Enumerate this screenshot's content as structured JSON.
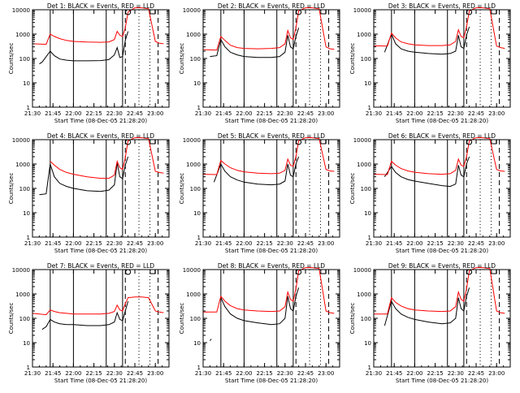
{
  "panel_common": {
    "ylabel": "Counts/sec",
    "xlabel": "Start Time (08-Dec-05 21:28:20)",
    "ytick_labels": [
      "1",
      "10",
      "100",
      "1000",
      "10000"
    ],
    "xtick_labels": [
      "21:30",
      "21:45",
      "22:00",
      "22:15",
      "22:30",
      "22:45",
      "23:00"
    ]
  },
  "colors": {
    "events": "#000000",
    "lld": "#ff0000",
    "axes": "#000000"
  },
  "chart_data": [
    {
      "type": "line",
      "title": "Det 1: BLACK = Events, RED = LLD",
      "xlabel": "Start Time (08-Dec-05 21:28:20)",
      "ylabel": "Counts/sec",
      "y_scale": "log",
      "ylim": [
        1,
        10000
      ],
      "xlim": [
        "21:30",
        "23:10"
      ],
      "series": [
        {
          "color": "black",
          "x": [
            "21:35",
            "21:37",
            "21:43",
            "21:46",
            "21:50",
            "21:55",
            "22:00",
            "22:10",
            "22:20",
            "22:26",
            "22:30",
            "22:32",
            "22:34",
            "22:36",
            "22:38",
            "22:40"
          ],
          "y": [
            60,
            70,
            200,
            130,
            95,
            85,
            80,
            80,
            82,
            90,
            140,
            280,
            110,
            120,
            550,
            1300
          ]
        },
        {
          "color": "red",
          "x": [
            "21:30",
            "21:40",
            "21:43",
            "21:46",
            "21:50",
            "21:55",
            "22:00",
            "22:10",
            "22:20",
            "22:26",
            "22:30",
            "22:32",
            "22:34",
            "22:36",
            "22:38",
            "22:40",
            "22:45",
            "22:50",
            "22:55",
            "23:00",
            "23:03",
            "23:06"
          ],
          "y": [
            400,
            380,
            1000,
            800,
            650,
            550,
            500,
            470,
            460,
            480,
            600,
            1300,
            900,
            800,
            1800,
            8000,
            12000,
            12000,
            11000,
            500,
            420,
            400
          ]
        }
      ]
    },
    {
      "type": "line",
      "title": "Det 2: BLACK = Events, RED = LLD",
      "xlabel": "Start Time (08-Dec-05 21:28:20)",
      "ylabel": "Counts/sec",
      "y_scale": "log",
      "ylim": [
        1,
        10000
      ],
      "xlim": [
        "21:30",
        "23:10"
      ],
      "series": [
        {
          "color": "black",
          "x": [
            "21:35",
            "21:40",
            "21:43",
            "21:46",
            "21:50",
            "21:55",
            "22:00",
            "22:10",
            "22:20",
            "22:26",
            "22:30",
            "22:32",
            "22:34",
            "22:36",
            "22:38",
            "22:40"
          ],
          "y": [
            120,
            130,
            600,
            300,
            180,
            140,
            120,
            110,
            110,
            120,
            180,
            900,
            300,
            250,
            800,
            1800
          ]
        },
        {
          "color": "red",
          "x": [
            "21:30",
            "21:40",
            "21:43",
            "21:46",
            "21:50",
            "21:55",
            "22:00",
            "22:10",
            "22:20",
            "22:26",
            "22:30",
            "22:32",
            "22:34",
            "22:36",
            "22:38",
            "22:40",
            "22:45",
            "22:50",
            "22:55",
            "23:00",
            "23:03",
            "23:06"
          ],
          "y": [
            230,
            220,
            800,
            550,
            350,
            280,
            260,
            250,
            260,
            280,
            400,
            1400,
            700,
            600,
            1800,
            9000,
            12000,
            12000,
            11000,
            300,
            250,
            240
          ]
        }
      ]
    },
    {
      "type": "line",
      "title": "Det 3: BLACK = Events, RED = LLD",
      "xlabel": "Start Time (08-Dec-05 21:28:20)",
      "ylabel": "Counts/sec",
      "y_scale": "log",
      "ylim": [
        1,
        10000
      ],
      "xlim": [
        "21:30",
        "23:10"
      ],
      "series": [
        {
          "color": "black",
          "x": [
            "21:38",
            "21:43",
            "21:46",
            "21:50",
            "21:55",
            "22:00",
            "22:10",
            "22:20",
            "22:26",
            "22:30",
            "22:32",
            "22:34",
            "22:36",
            "22:38",
            "22:40"
          ],
          "y": [
            180,
            1000,
            400,
            250,
            200,
            180,
            160,
            150,
            160,
            200,
            900,
            300,
            260,
            900,
            2000
          ]
        },
        {
          "color": "red",
          "x": [
            "21:30",
            "21:40",
            "21:43",
            "21:46",
            "21:50",
            "21:55",
            "22:00",
            "22:10",
            "22:20",
            "22:26",
            "22:30",
            "22:32",
            "22:34",
            "22:36",
            "22:38",
            "22:40",
            "22:45",
            "22:50",
            "22:55",
            "23:00",
            "23:03",
            "23:06"
          ],
          "y": [
            330,
            320,
            1100,
            700,
            480,
            400,
            360,
            340,
            340,
            360,
            500,
            1500,
            800,
            700,
            2000,
            9000,
            12000,
            12000,
            11000,
            320,
            280,
            260
          ]
        }
      ]
    },
    {
      "type": "line",
      "title": "Det 4: BLACK = Events, RED = LLD",
      "xlabel": "Start Time (08-Dec-05 21:28:20)",
      "ylabel": "Counts/sec",
      "y_scale": "log",
      "ylim": [
        1,
        10000
      ],
      "xlim": [
        "21:30",
        "23:10"
      ],
      "series": [
        {
          "color": "black",
          "x": [
            "21:35",
            "21:40",
            "21:43",
            "21:46",
            "21:50",
            "21:55",
            "22:00",
            "22:10",
            "22:20",
            "22:26",
            "22:30",
            "22:32",
            "22:34",
            "22:36",
            "22:38",
            "22:40"
          ],
          "y": [
            55,
            60,
            1000,
            300,
            160,
            120,
            100,
            80,
            75,
            85,
            140,
            1100,
            300,
            250,
            900,
            2000
          ]
        },
        {
          "color": "red",
          "x": [
            "21:43",
            "21:46",
            "21:50",
            "21:55",
            "22:00",
            "22:10",
            "22:20",
            "22:26",
            "22:30",
            "22:32",
            "22:34",
            "22:36",
            "22:38",
            "22:40",
            "22:45",
            "22:50",
            "22:55",
            "23:00",
            "23:03",
            "23:06"
          ],
          "y": [
            1300,
            900,
            600,
            450,
            380,
            300,
            260,
            260,
            350,
            1300,
            700,
            600,
            1800,
            9000,
            12000,
            12000,
            11000,
            500,
            450,
            420
          ]
        }
      ]
    },
    {
      "type": "line",
      "title": "Det 5: BLACK = Events, RED = LLD",
      "xlabel": "Start Time (08-Dec-05 21:28:20)",
      "ylabel": "Counts/sec",
      "y_scale": "log",
      "ylim": [
        1,
        10000
      ],
      "xlim": [
        "21:30",
        "23:10"
      ],
      "series": [
        {
          "color": "black",
          "x": [
            "21:38",
            "21:43",
            "21:46",
            "21:50",
            "21:55",
            "22:00",
            "22:10",
            "22:20",
            "22:26",
            "22:30",
            "22:32",
            "22:34",
            "22:36",
            "22:38",
            "22:40"
          ],
          "y": [
            180,
            1000,
            500,
            300,
            220,
            180,
            150,
            140,
            150,
            200,
            1000,
            350,
            300,
            1000,
            2000
          ]
        },
        {
          "color": "red",
          "x": [
            "21:30",
            "21:40",
            "21:43",
            "21:46",
            "21:50",
            "21:55",
            "22:00",
            "22:10",
            "22:20",
            "22:26",
            "22:30",
            "22:32",
            "22:34",
            "22:36",
            "22:38",
            "22:40",
            "22:45",
            "22:50",
            "22:55",
            "23:00",
            "23:03",
            "23:06"
          ],
          "y": [
            380,
            370,
            1400,
            1000,
            700,
            550,
            480,
            420,
            400,
            420,
            550,
            1600,
            900,
            800,
            2000,
            9000,
            12000,
            12000,
            11000,
            600,
            520,
            500
          ]
        }
      ]
    },
    {
      "type": "line",
      "title": "Det 6: BLACK = Events, RED = LLD",
      "xlabel": "Start Time (08-Dec-05 21:28:20)",
      "ylabel": "Counts/sec",
      "y_scale": "log",
      "ylim": [
        1,
        10000
      ],
      "xlim": [
        "21:30",
        "23:10"
      ],
      "series": [
        {
          "color": "black",
          "x": [
            "21:38",
            "21:43",
            "21:46",
            "21:50",
            "21:55",
            "22:00",
            "22:10",
            "22:20",
            "22:26",
            "22:30",
            "22:32",
            "22:34",
            "22:36",
            "22:38",
            "22:40"
          ],
          "y": [
            300,
            800,
            450,
            300,
            230,
            200,
            160,
            130,
            120,
            150,
            900,
            350,
            300,
            1000,
            2000
          ]
        },
        {
          "color": "red",
          "x": [
            "21:30",
            "21:40",
            "21:43",
            "21:46",
            "21:50",
            "21:55",
            "22:00",
            "22:10",
            "22:20",
            "22:26",
            "22:30",
            "22:32",
            "22:34",
            "22:36",
            "22:38",
            "22:40",
            "22:45",
            "22:50",
            "22:55",
            "23:00",
            "23:03",
            "23:06"
          ],
          "y": [
            380,
            370,
            1300,
            900,
            650,
            520,
            460,
            400,
            380,
            400,
            550,
            1600,
            900,
            800,
            2000,
            9000,
            12000,
            12000,
            11000,
            600,
            520,
            500
          ]
        }
      ]
    },
    {
      "type": "line",
      "title": "Det 7: BLACK = Events, RED = LLD",
      "xlabel": "Start Time (08-Dec-05 21:28:20)",
      "ylabel": "Counts/sec",
      "y_scale": "log",
      "ylim": [
        1,
        10000
      ],
      "xlim": [
        "21:30",
        "23:10"
      ],
      "series": [
        {
          "color": "black",
          "x": [
            "21:37",
            "21:40",
            "21:43",
            "21:46",
            "21:50",
            "21:55",
            "22:00",
            "22:10",
            "22:20",
            "22:26",
            "22:30",
            "22:32",
            "22:34",
            "22:36",
            "22:38",
            "22:40"
          ],
          "y": [
            35,
            45,
            90,
            70,
            60,
            55,
            55,
            50,
            50,
            55,
            70,
            170,
            90,
            80,
            200,
            500
          ]
        },
        {
          "color": "red",
          "x": [
            "21:30",
            "21:40",
            "21:43",
            "21:46",
            "21:50",
            "21:55",
            "22:00",
            "22:10",
            "22:20",
            "22:26",
            "22:30",
            "22:32",
            "22:34",
            "22:36",
            "22:38",
            "22:40",
            "22:45",
            "22:50",
            "22:55",
            "23:00",
            "23:03",
            "23:06"
          ],
          "y": [
            160,
            140,
            220,
            190,
            170,
            160,
            150,
            150,
            150,
            160,
            190,
            350,
            220,
            200,
            400,
            700,
            750,
            750,
            700,
            200,
            180,
            170
          ]
        }
      ]
    },
    {
      "type": "line",
      "title": "Det 8: BLACK = Events, RED = LLD",
      "xlabel": "Start Time (08-Dec-05 21:28:20)",
      "ylabel": "Counts/sec",
      "y_scale": "log",
      "ylim": [
        1,
        10000
      ],
      "xlim": [
        "21:30",
        "23:10"
      ],
      "series": [
        {
          "color": "black",
          "x": [
            "21:43",
            "21:46",
            "21:50",
            "21:55",
            "22:00",
            "22:10",
            "22:20",
            "22:26",
            "22:30",
            "22:32",
            "22:34",
            "22:36",
            "22:38",
            "22:40"
          ],
          "y": [
            700,
            300,
            150,
            100,
            80,
            65,
            55,
            60,
            100,
            800,
            250,
            200,
            800,
            1800
          ]
        },
        {
          "color": "black",
          "x": [
            "21:35",
            "21:36"
          ],
          "y": [
            12,
            14
          ]
        },
        {
          "color": "red",
          "x": [
            "21:30",
            "21:40",
            "21:43",
            "21:46",
            "21:50",
            "21:55",
            "22:00",
            "22:10",
            "22:20",
            "22:26",
            "22:30",
            "22:32",
            "22:34",
            "22:36",
            "22:38",
            "22:40",
            "22:45",
            "22:50",
            "22:55",
            "23:00",
            "23:03",
            "23:06"
          ],
          "y": [
            180,
            180,
            800,
            500,
            330,
            250,
            220,
            200,
            190,
            200,
            300,
            1200,
            600,
            500,
            1600,
            9000,
            12000,
            12000,
            11000,
            200,
            170,
            160
          ]
        }
      ]
    },
    {
      "type": "line",
      "title": "Det 9: BLACK = Events, RED = LLD",
      "xlabel": "Start Time (08-Dec-05 21:28:20)",
      "ylabel": "Counts/sec",
      "y_scale": "log",
      "ylim": [
        1,
        10000
      ],
      "xlim": [
        "21:30",
        "23:10"
      ],
      "series": [
        {
          "color": "black",
          "x": [
            "21:38",
            "21:43",
            "21:46",
            "21:50",
            "21:55",
            "22:00",
            "22:10",
            "22:20",
            "22:26",
            "22:30",
            "22:32",
            "22:34",
            "22:36",
            "22:38",
            "22:40"
          ],
          "y": [
            50,
            500,
            250,
            150,
            110,
            90,
            70,
            60,
            65,
            100,
            700,
            250,
            200,
            800,
            1800
          ]
        },
        {
          "color": "red",
          "x": [
            "21:30",
            "21:40",
            "21:43",
            "21:46",
            "21:50",
            "21:55",
            "22:00",
            "22:10",
            "22:20",
            "22:26",
            "22:30",
            "22:32",
            "22:34",
            "22:36",
            "22:38",
            "22:40",
            "22:45",
            "22:50",
            "22:55",
            "23:00",
            "23:03",
            "23:06"
          ],
          "y": [
            150,
            150,
            700,
            450,
            320,
            250,
            220,
            200,
            190,
            200,
            300,
            1200,
            600,
            500,
            1600,
            9000,
            12000,
            12000,
            11000,
            200,
            170,
            160
          ]
        }
      ]
    }
  ]
}
